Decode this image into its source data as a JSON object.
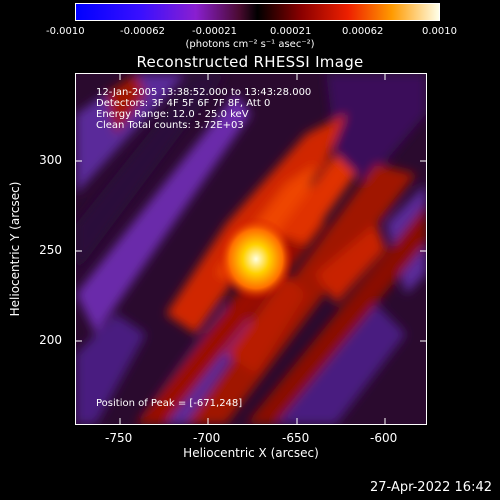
{
  "colorbar": {
    "ticks": [
      "-0.0010",
      "-0.00062",
      "-0.00021",
      "0.00021",
      "0.00062",
      "0.0010"
    ],
    "units": "(photons cm⁻² s⁻¹ asec⁻²)"
  },
  "title": "Reconstructed RHESSI Image",
  "info": {
    "line1": "12-Jan-2005 13:38:52.000 to 13:43:28.000",
    "line2": "Detectors: 3F 4F 5F 6F 7F 8F, Att 0",
    "line3": "Energy Range: 12.0 - 25.0 keV",
    "line4": "Clean     Total counts: 3.72E+03"
  },
  "peak": "Position of Peak = [-671,248]",
  "axes": {
    "xlabel": "Heliocentric X (arcsec)",
    "ylabel": "Heliocentric Y (arcsec)",
    "xticks": [
      "-750",
      "-700",
      "-650",
      "-600"
    ],
    "yticks": [
      "300",
      "250",
      "200"
    ]
  },
  "timestamp": "27-Apr-2022 16:42"
}
